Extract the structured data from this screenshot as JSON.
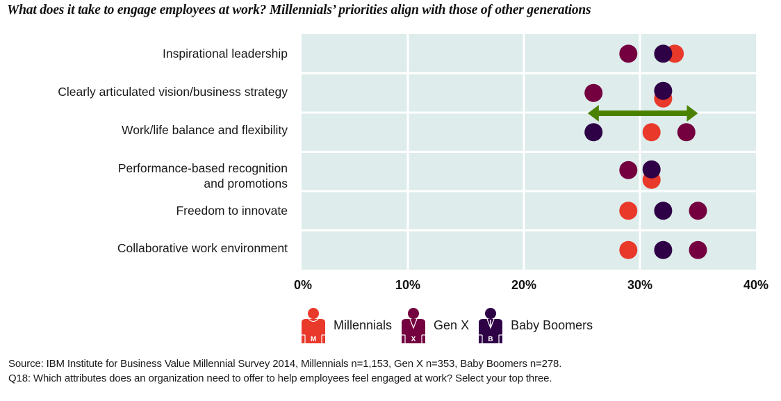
{
  "colors": {
    "Millennials": "#e8392b",
    "Gen X": "#740040",
    "Baby Boomers": "#2e0046",
    "plot_bg": "#deeceb",
    "grid": "#ffffff",
    "arrow": "#4a8200"
  },
  "chart_data": {
    "type": "scatter",
    "title": "What does it take to engage employees at work? Millennials’ priorities align with those of other generations",
    "xlabel": "",
    "ylabel": "",
    "xlim": [
      0,
      40
    ],
    "x_ticks": [
      "0%",
      "10%",
      "20%",
      "30%",
      "40%"
    ],
    "x_tick_values": [
      0,
      10,
      20,
      30,
      40
    ],
    "grid": true,
    "legend_position": "bottom-center",
    "categories": [
      [
        "Inspirational leadership"
      ],
      [
        "Clearly articulated vision/business strategy"
      ],
      [
        "Work/life balance and flexibility"
      ],
      [
        "Performance-based recognition",
        "and promotions"
      ],
      [
        "Freedom to innovate"
      ],
      [
        "Collaborative work environment"
      ]
    ],
    "series": [
      {
        "name": "Millennials",
        "legend_letter": "M",
        "values": [
          33,
          32,
          31,
          31,
          29,
          29
        ]
      },
      {
        "name": "Gen X",
        "legend_letter": "X",
        "values": [
          29,
          26,
          34,
          29,
          35,
          35
        ]
      },
      {
        "name": "Baby Boomers",
        "legend_letter": "B",
        "values": [
          32,
          32,
          26,
          31,
          32,
          32
        ]
      }
    ],
    "annotations": [
      {
        "type": "double-arrow",
        "category_index": 2,
        "from": 25.5,
        "to": 35,
        "description": "range highlight between rows 2 and 3"
      }
    ]
  },
  "source": {
    "line1": "Source: IBM Institute for Business Value Millennial Survey 2014, Millennials n=1,153, Gen X n=353, Baby Boomers n=278.",
    "line2": "Q18: Which attributes does an organization need to offer to help employees feel engaged at work? Select your top three."
  }
}
